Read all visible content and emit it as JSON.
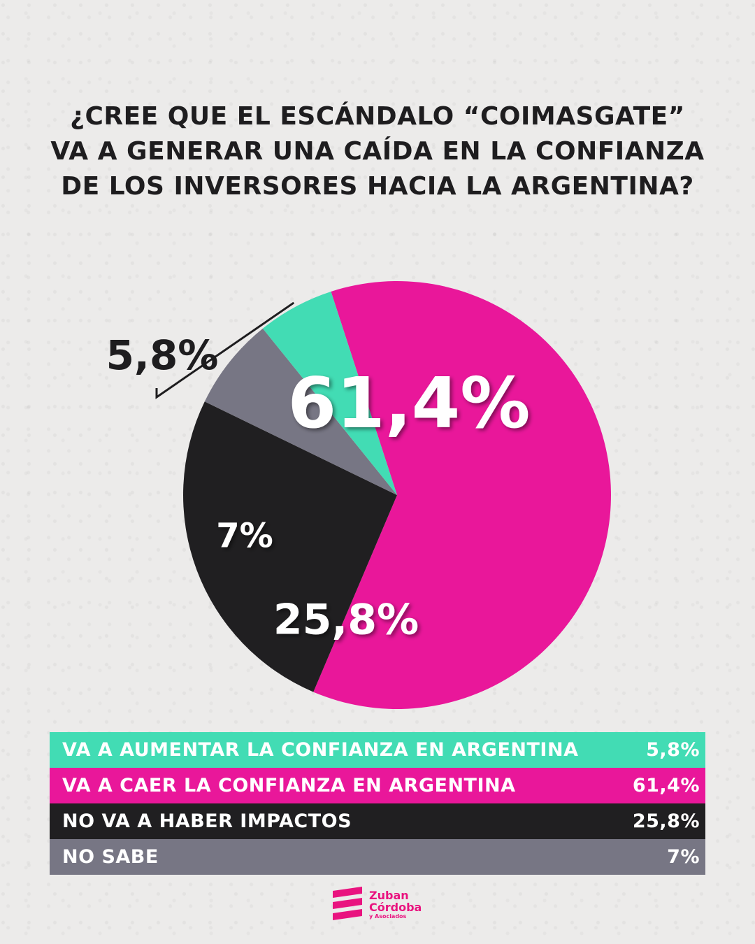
{
  "title_lines": [
    "¿CREE QUE EL ESCÁNDALO “COIMASGATE”",
    "VA A GENERAR UNA CAÍDA EN LA CONFIANZA",
    "DE LOS INVERSORES HACIA LA ARGENTINA?"
  ],
  "chart_data": {
    "type": "pie",
    "slices": [
      {
        "label": "VA A CAER LA CONFIANZA EN ARGENTINA",
        "value": 61.4,
        "display": "61,4%",
        "color": "#e9179a"
      },
      {
        "label": "NO VA A HABER IMPACTOS",
        "value": 25.8,
        "display": "25,8%",
        "color": "#201f21"
      },
      {
        "label": "NO SABE",
        "value": 7,
        "display": "7%",
        "color": "#777684"
      },
      {
        "label": "VA A AUMENTAR LA CONFIANZA EN ARGENTINA",
        "value": 5.8,
        "display": "5,8%",
        "color": "#42dcb4"
      }
    ]
  },
  "legend": [
    {
      "label": "VA A AUMENTAR LA CONFIANZA EN ARGENTINA",
      "value": "5,8%",
      "bg": "#42dcb4",
      "fg": "#ffffff"
    },
    {
      "label": "VA A CAER LA CONFIANZA EN ARGENTINA",
      "value": "61,4%",
      "bg": "#e9179a",
      "fg": "#ffffff"
    },
    {
      "label": "NO VA A HABER IMPACTOS",
      "value": "25,8%",
      "bg": "#201f21",
      "fg": "#ffffff"
    },
    {
      "label": "NO SABE",
      "value": "7%",
      "bg": "#777684",
      "fg": "#ffffff"
    }
  ],
  "logo": {
    "line1": "Zuban",
    "line2": "Córdoba",
    "line3": "y Asociados",
    "color": "#e9137f"
  }
}
